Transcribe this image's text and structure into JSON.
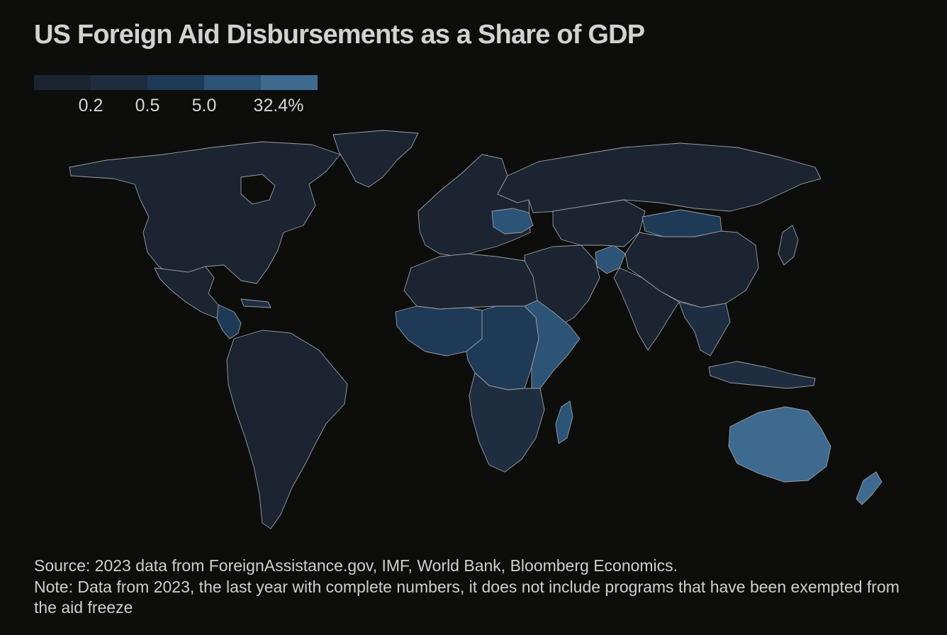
{
  "title": "US Foreign Aid Disbursements as a Share of GDP",
  "legend": {
    "colors": [
      "#1d2431",
      "#1f2d40",
      "#1e3a57",
      "#2c5476",
      "#3f6a90"
    ],
    "ticks": [
      "0.2",
      "0.5",
      "5.0",
      "32.4%"
    ]
  },
  "map": {
    "land_color": "#1f2430",
    "border_color": "#9a9ea6",
    "background": "#0d0d0c",
    "regions": [
      {
        "id": "north-america",
        "tier": 0
      },
      {
        "id": "greenland",
        "tier": 0
      },
      {
        "id": "mexico",
        "tier": 0
      },
      {
        "id": "central-america",
        "tier": 2
      },
      {
        "id": "south-america",
        "tier": 0
      },
      {
        "id": "europe",
        "tier": 0
      },
      {
        "id": "ukraine",
        "tier": 3
      },
      {
        "id": "russia",
        "tier": 0
      },
      {
        "id": "north-africa",
        "tier": 0
      },
      {
        "id": "west-africa",
        "tier": 2
      },
      {
        "id": "central-africa",
        "tier": 2
      },
      {
        "id": "east-africa",
        "tier": 3
      },
      {
        "id": "southern-africa",
        "tier": 1
      },
      {
        "id": "madagascar",
        "tier": 3
      },
      {
        "id": "middle-east",
        "tier": 0
      },
      {
        "id": "afghanistan",
        "tier": 3
      },
      {
        "id": "central-asia",
        "tier": 0
      },
      {
        "id": "mongolia",
        "tier": 2
      },
      {
        "id": "china",
        "tier": 0
      },
      {
        "id": "india",
        "tier": 0
      },
      {
        "id": "southeast-asia",
        "tier": 1
      },
      {
        "id": "indonesia",
        "tier": 1
      },
      {
        "id": "japan",
        "tier": 0
      },
      {
        "id": "australia",
        "tier": 4
      },
      {
        "id": "new-zealand",
        "tier": 4
      }
    ]
  },
  "footer": {
    "source": "Source: 2023 data from ForeignAssistance.gov, IMF, World Bank, Bloomberg Economics.",
    "note": "Note: Data from 2023, the last year with complete numbers, it does not include programs that have been exempted from the aid freeze"
  }
}
